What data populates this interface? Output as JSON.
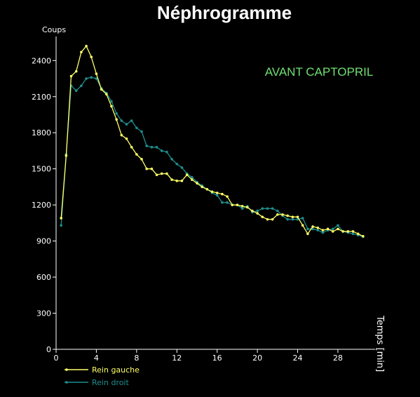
{
  "chart_data": {
    "type": "line",
    "title": "Néphrogramme",
    "annotation": "AVANT CAPTOPRIL",
    "xlabel": "Temps [min]",
    "ylabel": "Coups",
    "xlim": [
      0,
      31
    ],
    "ylim": [
      0,
      2600
    ],
    "xticks": [
      "0",
      "4",
      "8",
      "12",
      "16",
      "20",
      "24",
      "28"
    ],
    "yticks": [
      "0",
      "300",
      "600",
      "900",
      "1200",
      "1500",
      "1800",
      "2100",
      "2400"
    ],
    "grid": false,
    "legend": "bottom-left",
    "series": [
      {
        "name": "Rein gauche",
        "color": "#ffff66",
        "x": [
          0.5,
          1.0,
          1.5,
          2.0,
          2.5,
          3.0,
          3.5,
          4.0,
          4.5,
          5.0,
          5.5,
          6.0,
          6.5,
          7.0,
          7.5,
          8.0,
          8.5,
          9.0,
          9.5,
          10.0,
          10.5,
          11.0,
          11.5,
          12.0,
          12.5,
          13.0,
          13.5,
          14.0,
          14.5,
          15.0,
          15.5,
          16.0,
          16.5,
          17.0,
          17.5,
          18.0,
          18.5,
          19.0,
          19.5,
          20.0,
          20.5,
          21.0,
          21.5,
          22.0,
          22.5,
          23.0,
          23.5,
          24.0,
          24.5,
          25.0,
          25.5,
          26.0,
          26.5,
          27.0,
          27.5,
          28.0,
          28.5,
          29.0,
          29.5,
          30.0,
          30.5
        ],
        "y": [
          1090,
          1610,
          2270,
          2310,
          2470,
          2520,
          2430,
          2290,
          2160,
          2120,
          2020,
          1910,
          1780,
          1750,
          1680,
          1620,
          1580,
          1500,
          1500,
          1450,
          1460,
          1460,
          1410,
          1400,
          1400,
          1450,
          1410,
          1380,
          1350,
          1330,
          1310,
          1300,
          1290,
          1270,
          1200,
          1200,
          1190,
          1180,
          1150,
          1130,
          1100,
          1080,
          1080,
          1120,
          1120,
          1110,
          1100,
          1100,
          1030,
          960,
          1020,
          1010,
          990,
          1000,
          980,
          1000,
          980,
          980,
          980,
          960,
          940
        ]
      },
      {
        "name": "Rein droit",
        "color": "#1f8e8e",
        "x": [
          0.5,
          1.0,
          1.5,
          2.0,
          2.5,
          3.0,
          3.5,
          4.0,
          4.5,
          5.0,
          5.5,
          6.0,
          6.5,
          7.0,
          7.5,
          8.0,
          8.5,
          9.0,
          9.5,
          10.0,
          10.5,
          11.0,
          11.5,
          12.0,
          12.5,
          13.0,
          13.5,
          14.0,
          14.5,
          15.0,
          15.5,
          16.0,
          16.5,
          17.0,
          17.5,
          18.0,
          18.5,
          19.0,
          19.5,
          20.0,
          20.5,
          21.0,
          21.5,
          22.0,
          22.5,
          23.0,
          23.5,
          24.0,
          24.5,
          25.0,
          25.5,
          26.0,
          26.5,
          27.0,
          27.5,
          28.0,
          28.5,
          29.0,
          29.5,
          30.0,
          30.5
        ],
        "y": [
          1030,
          1620,
          2190,
          2150,
          2190,
          2250,
          2260,
          2250,
          2170,
          2130,
          2060,
          1960,
          1900,
          1870,
          1900,
          1840,
          1810,
          1690,
          1680,
          1680,
          1650,
          1640,
          1580,
          1540,
          1510,
          1460,
          1430,
          1390,
          1360,
          1330,
          1300,
          1280,
          1220,
          1220,
          1200,
          1200,
          1170,
          1190,
          1140,
          1150,
          1170,
          1170,
          1170,
          1150,
          1110,
          1080,
          1080,
          1080,
          1090,
          1000,
          1000,
          990,
          970,
          990,
          1000,
          1030,
          980,
          970,
          960,
          950,
          935
        ]
      }
    ]
  }
}
